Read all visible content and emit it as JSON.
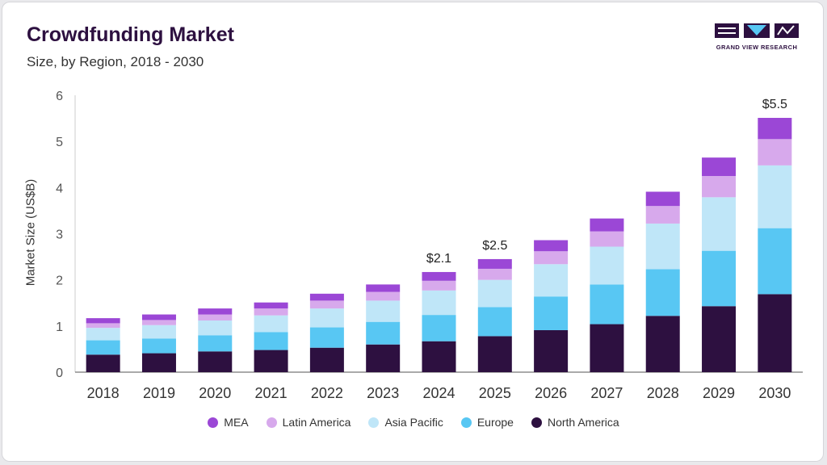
{
  "header": {
    "title": "Crowdfunding Market",
    "subtitle": "Size, by Region, 2018 - 2030"
  },
  "logo": {
    "text": "GRAND VIEW RESEARCH"
  },
  "colors": {
    "MEA": "#9b47d6",
    "Latin America": "#d7a9ec",
    "Asia Pacific": "#bfe6f8",
    "Europe": "#58c7f3",
    "North America": "#2d1040"
  },
  "chart_data": {
    "type": "bar",
    "stacked": true,
    "title": "Crowdfunding Market",
    "subtitle": "Size, by Region, 2018 - 2030",
    "xlabel": "",
    "ylabel": "Market Size (US$B)",
    "ylim": [
      0,
      6
    ],
    "yticks": [
      0,
      1,
      2,
      3,
      4,
      5,
      6
    ],
    "grid": false,
    "legend_position": "bottom",
    "categories": [
      "2018",
      "2019",
      "2020",
      "2021",
      "2022",
      "2023",
      "2024",
      "2025",
      "2026",
      "2027",
      "2028",
      "2029",
      "2030"
    ],
    "series": [
      {
        "name": "North America",
        "values": [
          0.38,
          0.41,
          0.45,
          0.48,
          0.53,
          0.6,
          0.67,
          0.78,
          0.91,
          1.04,
          1.22,
          1.43,
          1.69
        ]
      },
      {
        "name": "Europe",
        "values": [
          0.31,
          0.32,
          0.35,
          0.39,
          0.44,
          0.49,
          0.57,
          0.63,
          0.73,
          0.86,
          1.01,
          1.2,
          1.43
        ]
      },
      {
        "name": "Asia Pacific",
        "values": [
          0.27,
          0.29,
          0.32,
          0.36,
          0.41,
          0.46,
          0.53,
          0.59,
          0.7,
          0.82,
          0.99,
          1.16,
          1.36
        ]
      },
      {
        "name": "Latin America",
        "values": [
          0.1,
          0.11,
          0.13,
          0.15,
          0.17,
          0.19,
          0.21,
          0.24,
          0.28,
          0.33,
          0.38,
          0.46,
          0.57
        ]
      },
      {
        "name": "MEA",
        "values": [
          0.11,
          0.12,
          0.13,
          0.13,
          0.15,
          0.16,
          0.19,
          0.21,
          0.24,
          0.28,
          0.31,
          0.4,
          0.46
        ]
      }
    ],
    "annotations": [
      {
        "category": "2024",
        "text": "$2.1"
      },
      {
        "category": "2025",
        "text": "$2.5"
      },
      {
        "category": "2030",
        "text": "$5.5"
      }
    ]
  }
}
